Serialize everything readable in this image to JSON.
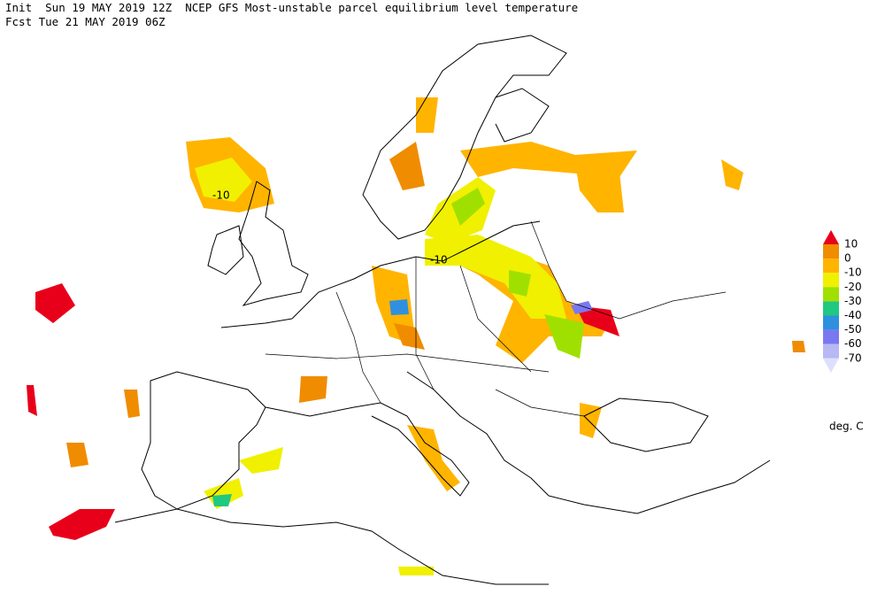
{
  "header": {
    "line1": "Init  Sun 19 MAY 2019 12Z  NCEP GFS Most-unstable parcel equilibrium level temperature",
    "line2": "Fcst Tue 21 MAY 2019 06Z"
  },
  "legend": {
    "levels": [
      10,
      0,
      -10,
      -20,
      -30,
      -40,
      -50,
      -60,
      -70
    ],
    "colors": [
      "#e8001a",
      "#f08c00",
      "#ffb400",
      "#f0f000",
      "#a0e000",
      "#20c880",
      "#3090e0",
      "#7a78f0",
      "#b8b8f4",
      "#dde0fc"
    ],
    "unit": "deg. C"
  },
  "contour_labels": [
    -10,
    -10
  ]
}
